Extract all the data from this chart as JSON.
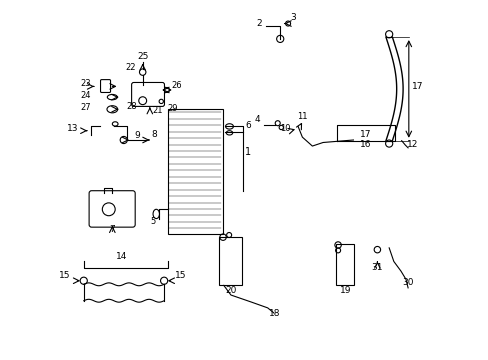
{
  "bg_color": "#ffffff",
  "line_color": "#000000",
  "lw": 0.8
}
